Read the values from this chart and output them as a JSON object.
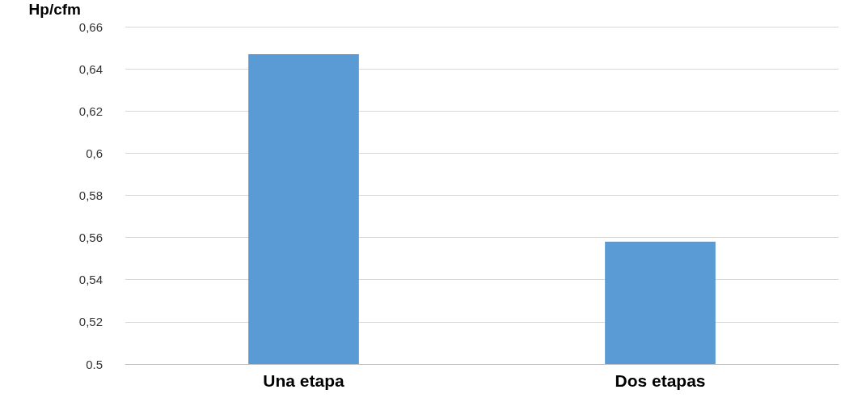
{
  "chart_data": {
    "type": "bar",
    "ylabel": "Hp/cfm",
    "categories": [
      "Una etapa",
      "Dos etapas"
    ],
    "values": [
      0.647,
      0.558
    ],
    "color": "#5b9bd5",
    "ylim": [
      0.5,
      0.66
    ],
    "yticks": [
      {
        "value": 0.5,
        "label": "0.5"
      },
      {
        "value": 0.52,
        "label": "0,52"
      },
      {
        "value": 0.54,
        "label": "0,54"
      },
      {
        "value": 0.56,
        "label": "0,56"
      },
      {
        "value": 0.58,
        "label": "0,58"
      },
      {
        "value": 0.6,
        "label": "0,6"
      },
      {
        "value": 0.62,
        "label": "0,62"
      },
      {
        "value": 0.64,
        "label": "0,64"
      },
      {
        "value": 0.66,
        "label": "0,66"
      }
    ],
    "grid": "y"
  }
}
